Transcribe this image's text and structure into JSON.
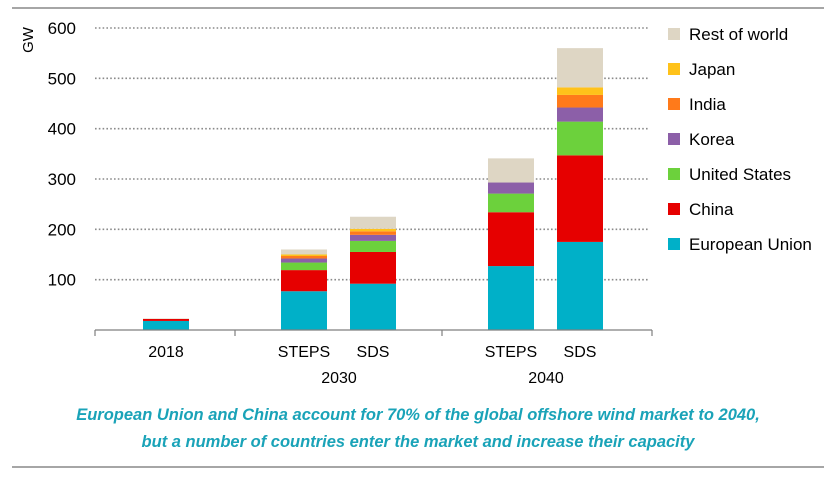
{
  "chart_data": {
    "type": "bar",
    "stacked": true,
    "ylabel": "GW",
    "ylim": [
      0,
      600
    ],
    "yticks": [
      100,
      200,
      300,
      400,
      500,
      600
    ],
    "grid": true,
    "legend_position": "right",
    "categories": [
      "2018",
      "STEPS",
      "SDS",
      "STEPS",
      "SDS"
    ],
    "groups": [
      {
        "label": "2018",
        "categories": [
          0
        ]
      },
      {
        "label": "2030",
        "categories": [
          1,
          2
        ]
      },
      {
        "label": "2040",
        "categories": [
          3,
          4
        ]
      }
    ],
    "series": [
      {
        "name": "European Union",
        "color": "#00b0c8",
        "values": [
          18,
          77,
          92,
          127,
          175
        ]
      },
      {
        "name": "China",
        "color": "#e60000",
        "values": [
          4,
          42,
          63,
          107,
          172
        ]
      },
      {
        "name": "United States",
        "color": "#6cd13c",
        "values": [
          0,
          15,
          22,
          37,
          67
        ]
      },
      {
        "name": "Korea",
        "color": "#8c5fa8",
        "values": [
          0,
          8,
          12,
          22,
          28
        ]
      },
      {
        "name": "India",
        "color": "#ff7a1a",
        "values": [
          0,
          5,
          7,
          0,
          25
        ]
      },
      {
        "name": "Japan",
        "color": "#ffc21a",
        "values": [
          0,
          3,
          5,
          0,
          15
        ]
      },
      {
        "name": "Rest of world",
        "color": "#ded6c4",
        "values": [
          1,
          10,
          24,
          48,
          78
        ]
      }
    ]
  },
  "caption": {
    "line1": "European Union and China account for 70% of the global offshore wind market to 2040,",
    "line2": "but a number of countries enter the market and increase their capacity"
  }
}
